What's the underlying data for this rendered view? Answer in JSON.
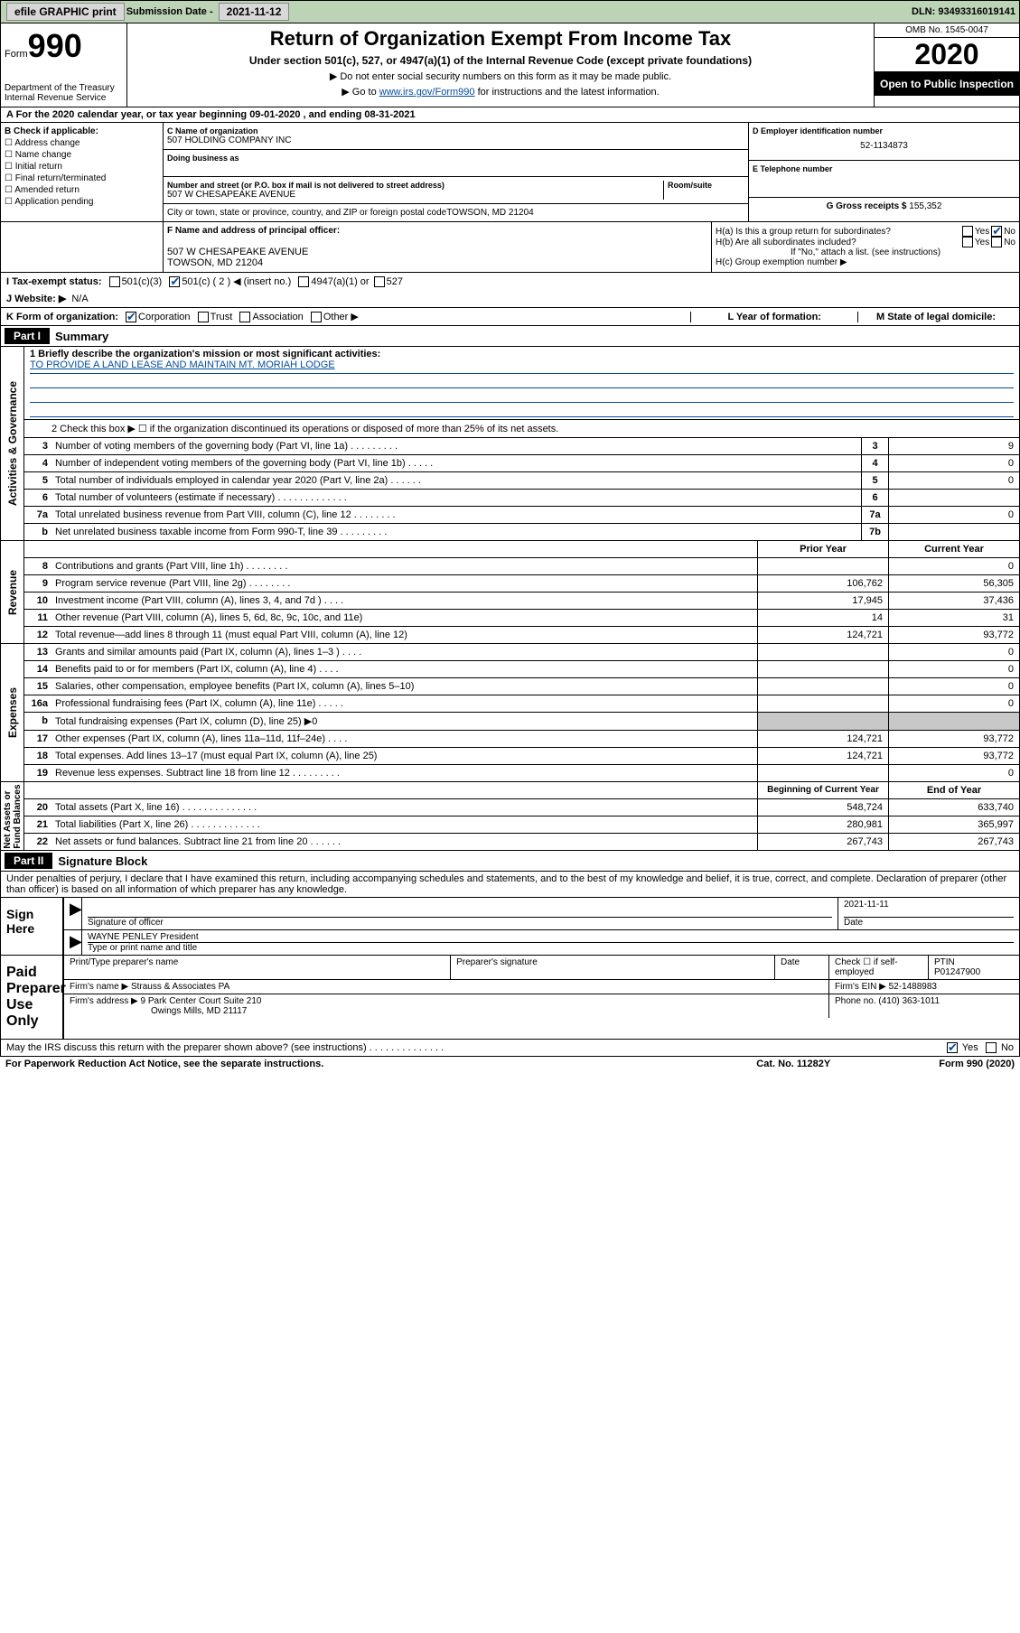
{
  "topbar": {
    "efile": "efile GRAPHIC print",
    "submission_label": "Submission Date - ",
    "submission_date": "2021-11-12",
    "dln_label": "DLN: ",
    "dln": "93493316019141"
  },
  "header": {
    "form_word": "Form",
    "form_number": "990",
    "dept": "Department of the Treasury\nInternal Revenue Service",
    "title": "Return of Organization Exempt From Income Tax",
    "subtitle": "Under section 501(c), 527, or 4947(a)(1) of the Internal Revenue Code (except private foundations)",
    "note1": "▶ Do not enter social security numbers on this form as it may be made public.",
    "note2_pre": "▶ Go to ",
    "note2_link": "www.irs.gov/Form990",
    "note2_post": " for instructions and the latest information.",
    "omb": "OMB No. 1545-0047",
    "year": "2020",
    "inspection": "Open to Public Inspection"
  },
  "row_a": "A  For the 2020 calendar year, or tax year beginning 09-01-2020    , and ending 08-31-2021",
  "section_b": {
    "label": "B Check if applicable:",
    "opts": [
      "Address change",
      "Name change",
      "Initial return",
      "Final return/terminated",
      "Amended return",
      "Application pending"
    ]
  },
  "org": {
    "name_label": "C Name of organization",
    "name": "507 HOLDING COMPANY INC",
    "dba_label": "Doing business as",
    "dba": "",
    "street_label": "Number and street (or P.O. box if mail is not delivered to street address)",
    "room_label": "Room/suite",
    "street": "507 W CHESAPEAKE AVENUE",
    "city_label": "City or town, state or province, country, and ZIP or foreign postal code",
    "city": "TOWSON, MD  21204"
  },
  "right": {
    "ein_label": "D Employer identification number",
    "ein": "52-1134873",
    "phone_label": "E Telephone number",
    "phone": "",
    "gross_label": "G Gross receipts $ ",
    "gross": "155,352"
  },
  "fh": {
    "f_label": "F  Name and address of principal officer:",
    "f_addr1": "507 W CHESAPEAKE AVENUE",
    "f_addr2": "TOWSON, MD  21204",
    "ha_label": "H(a)  Is this a group return for subordinates?",
    "hb_label": "H(b)  Are all subordinates included?",
    "hb_note": "If \"No,\" attach a list. (see instructions)",
    "hc_label": "H(c)  Group exemption number ▶",
    "yes": "Yes",
    "no": "No"
  },
  "status": {
    "i_label": "I   Tax-exempt status:",
    "c3": "501(c)(3)",
    "c": "501(c) ( 2 ) ◀ (insert no.)",
    "a1": "4947(a)(1) or",
    "s527": "527",
    "j_label": "J   Website: ▶",
    "j_val": "N/A"
  },
  "k": {
    "label": "K Form of organization:",
    "corp": "Corporation",
    "trust": "Trust",
    "assoc": "Association",
    "other": "Other ▶",
    "l_label": "L Year of formation:",
    "m_label": "M State of legal domicile:"
  },
  "part1": {
    "tag": "Part I",
    "title": "Summary",
    "line1_label": "1   Briefly describe the organization's mission or most significant activities:",
    "mission": "TO PROVIDE A LAND LEASE AND MAINTAIN MT. MORIAH LODGE",
    "line2": "2    Check this box ▶ ☐  if the organization discontinued its operations or disposed of more than 25% of its net assets.",
    "rows_ag": [
      {
        "n": "3",
        "d": "Number of voting members of the governing body (Part VI, line 1a)  .  .  .  .  .  .  .  .  .",
        "b": "3",
        "v": "9"
      },
      {
        "n": "4",
        "d": "Number of independent voting members of the governing body (Part VI, line 1b)  .  .  .  .  .",
        "b": "4",
        "v": "0"
      },
      {
        "n": "5",
        "d": "Total number of individuals employed in calendar year 2020 (Part V, line 2a)  .  .  .  .  .  .",
        "b": "5",
        "v": "0"
      },
      {
        "n": "6",
        "d": "Total number of volunteers (estimate if necessary)  .  .  .  .  .  .  .  .  .  .  .  .  .",
        "b": "6",
        "v": ""
      },
      {
        "n": "7a",
        "d": "Total unrelated business revenue from Part VIII, column (C), line 12  .  .  .  .  .  .  .  .",
        "b": "7a",
        "v": "0"
      },
      {
        "n": "b",
        "d": "Net unrelated business taxable income from Form 990-T, line 39  .  .  .  .  .  .  .  .  .",
        "b": "7b",
        "v": ""
      }
    ],
    "hdr_prior": "Prior Year",
    "hdr_curr": "Current Year",
    "rows_rev": [
      {
        "n": "8",
        "d": "Contributions and grants (Part VIII, line 1h)  .  .  .  .  .  .  .  .",
        "p": "",
        "c": "0"
      },
      {
        "n": "9",
        "d": "Program service revenue (Part VIII, line 2g)  .  .  .  .  .  .  .  .",
        "p": "106,762",
        "c": "56,305"
      },
      {
        "n": "10",
        "d": "Investment income (Part VIII, column (A), lines 3, 4, and 7d )  .  .  .  .",
        "p": "17,945",
        "c": "37,436"
      },
      {
        "n": "11",
        "d": "Other revenue (Part VIII, column (A), lines 5, 6d, 8c, 9c, 10c, and 11e)",
        "p": "14",
        "c": "31"
      },
      {
        "n": "12",
        "d": "Total revenue—add lines 8 through 11 (must equal Part VIII, column (A), line 12)",
        "p": "124,721",
        "c": "93,772"
      }
    ],
    "rows_exp": [
      {
        "n": "13",
        "d": "Grants and similar amounts paid (Part IX, column (A), lines 1–3 )  .  .  .  .",
        "p": "",
        "c": "0"
      },
      {
        "n": "14",
        "d": "Benefits paid to or for members (Part IX, column (A), line 4)  .  .  .  .",
        "p": "",
        "c": "0"
      },
      {
        "n": "15",
        "d": "Salaries, other compensation, employee benefits (Part IX, column (A), lines 5–10)",
        "p": "",
        "c": "0"
      },
      {
        "n": "16a",
        "d": "Professional fundraising fees (Part IX, column (A), line 11e)  .  .  .  .  .",
        "p": "",
        "c": "0"
      },
      {
        "n": "b",
        "d": "Total fundraising expenses (Part IX, column (D), line 25) ▶0",
        "p": "gray",
        "c": "gray"
      },
      {
        "n": "17",
        "d": "Other expenses (Part IX, column (A), lines 11a–11d, 11f–24e)  .  .  .  .",
        "p": "124,721",
        "c": "93,772"
      },
      {
        "n": "18",
        "d": "Total expenses. Add lines 13–17 (must equal Part IX, column (A), line 25)",
        "p": "124,721",
        "c": "93,772"
      },
      {
        "n": "19",
        "d": "Revenue less expenses. Subtract line 18 from line 12  .  .  .  .  .  .  .  .  .",
        "p": "",
        "c": "0"
      }
    ],
    "hdr_boy": "Beginning of Current Year",
    "hdr_eoy": "End of Year",
    "rows_na": [
      {
        "n": "20",
        "d": "Total assets (Part X, line 16)  .  .  .  .  .  .  .  .  .  .  .  .  .  .",
        "p": "548,724",
        "c": "633,740"
      },
      {
        "n": "21",
        "d": "Total liabilities (Part X, line 26)  .  .  .  .  .  .  .  .  .  .  .  .  .",
        "p": "280,981",
        "c": "365,997"
      },
      {
        "n": "22",
        "d": "Net assets or fund balances. Subtract line 21 from line 20  .  .  .  .  .  .",
        "p": "267,743",
        "c": "267,743"
      }
    ],
    "vlabels": {
      "ag": "Activities & Governance",
      "rev": "Revenue",
      "exp": "Expenses",
      "na": "Net Assets or\nFund Balances"
    }
  },
  "part2": {
    "tag": "Part II",
    "title": "Signature Block",
    "penalty": "Under penalties of perjury, I declare that I have examined this return, including accompanying schedules and statements, and to the best of my knowledge and belief, it is true, correct, and complete. Declaration of preparer (other than officer) is based on all information of which preparer has any knowledge."
  },
  "sign": {
    "here": "Sign Here",
    "sig_officer": "Signature of officer",
    "date_label": "Date",
    "date": "2021-11-11",
    "name": "WAYNE PENLEY President",
    "type_label": "Type or print name and title"
  },
  "paid": {
    "label": "Paid Preparer Use Only",
    "print_label": "Print/Type preparer's name",
    "sig_label": "Preparer's signature",
    "date_label": "Date",
    "check_label": "Check ☐ if self-employed",
    "ptin_label": "PTIN",
    "ptin": "P01247900",
    "firm_name_label": "Firm's name     ▶",
    "firm_name": "Strauss & Associates PA",
    "firm_ein_label": "Firm's EIN ▶",
    "firm_ein": "52-1488983",
    "firm_addr_label": "Firm's address ▶",
    "firm_addr1": "9 Park Center Court Suite 210",
    "firm_addr2": "Owings Mills, MD  21117",
    "phone_label": "Phone no. ",
    "phone": "(410) 363-1011"
  },
  "discuss": {
    "q": "May the IRS discuss this return with the preparer shown above? (see instructions)  .  .  .  .  .  .  .  .  .  .  .  .  .  .",
    "yes": "Yes",
    "no": "No"
  },
  "footer": {
    "left": "For Paperwork Reduction Act Notice, see the separate instructions.",
    "mid": "Cat. No. 11282Y",
    "right": "Form 990 (2020)"
  }
}
